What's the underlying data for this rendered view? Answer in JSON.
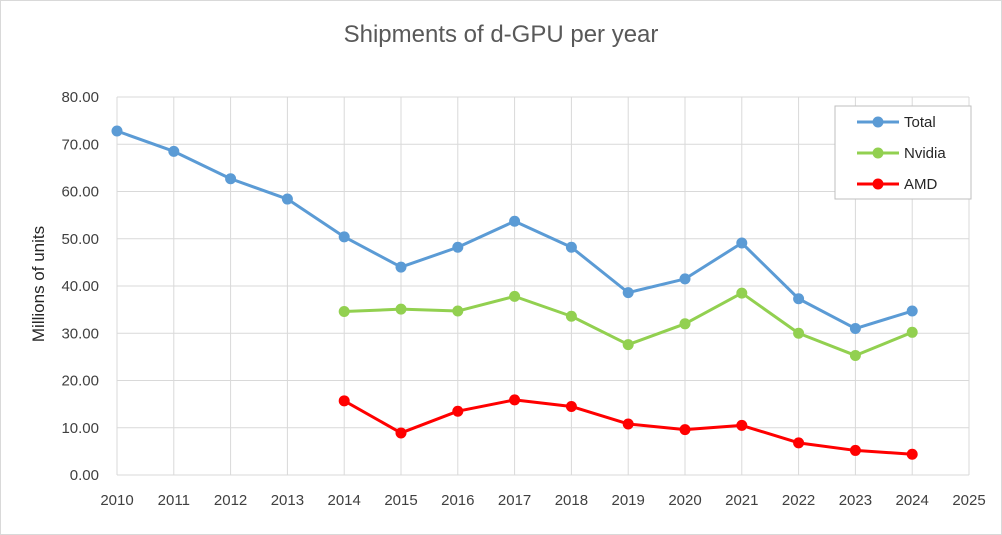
{
  "chart_data": {
    "type": "line",
    "title": "Shipments of d-GPU per year",
    "xlabel": "",
    "ylabel": "Millions of units",
    "x": [
      2010,
      2011,
      2012,
      2013,
      2014,
      2015,
      2016,
      2017,
      2018,
      2019,
      2020,
      2021,
      2022,
      2023,
      2024
    ],
    "x_ticks": [
      "2010",
      "2011",
      "2012",
      "2013",
      "2014",
      "2015",
      "2016",
      "2017",
      "2018",
      "2019",
      "2020",
      "2021",
      "2022",
      "2023",
      "2024",
      "2025"
    ],
    "xlim": [
      2010,
      2025
    ],
    "ylim": [
      0,
      80
    ],
    "y_ticks": [
      "0.00",
      "10.00",
      "20.00",
      "30.00",
      "40.00",
      "50.00",
      "60.00",
      "70.00",
      "80.00"
    ],
    "grid": true,
    "legend_position": "top-right",
    "series": [
      {
        "name": "Total",
        "color": "#5b9bd5",
        "values": [
          72.8,
          68.5,
          62.7,
          58.4,
          50.4,
          44.0,
          48.2,
          53.7,
          48.2,
          38.6,
          41.5,
          49.1,
          37.3,
          31.0,
          34.7
        ]
      },
      {
        "name": "Nvidia",
        "color": "#92d050",
        "values": [
          null,
          null,
          null,
          null,
          34.6,
          35.1,
          34.7,
          37.8,
          33.6,
          27.6,
          32.0,
          38.5,
          30.0,
          25.3,
          30.2
        ]
      },
      {
        "name": "AMD",
        "color": "#ff0000",
        "values": [
          null,
          null,
          null,
          null,
          15.7,
          8.9,
          13.5,
          15.9,
          14.5,
          10.8,
          9.6,
          10.5,
          6.8,
          5.2,
          4.4
        ]
      }
    ]
  }
}
